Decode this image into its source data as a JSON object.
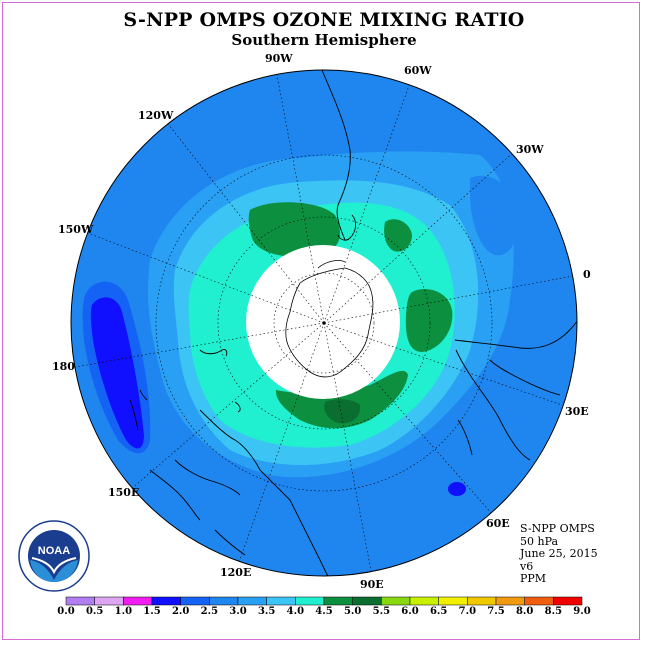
{
  "header": {
    "title": "S-NPP OMPS OZONE MIXING RATIO",
    "subtitle": "Southern Hemisphere"
  },
  "map": {
    "projection": "polar-stereographic-south",
    "longitude_labels": [
      "90W",
      "60W",
      "30W",
      "0",
      "30E",
      "60E",
      "90E",
      "120E",
      "150E",
      "180",
      "150W",
      "120W"
    ],
    "ocean_color": "#1f86f0",
    "mask_color": "#ffffff"
  },
  "info": {
    "instrument": "S-NPP OMPS",
    "level": "50 hPa",
    "date": "June 25, 2015",
    "version": "v6",
    "units": "PPM"
  },
  "colorbar": {
    "ticks": [
      "0.0",
      "0.5",
      "1.0",
      "1.5",
      "2.0",
      "2.5",
      "3.0",
      "3.5",
      "4.0",
      "4.5",
      "5.0",
      "5.5",
      "6.0",
      "6.5",
      "7.0",
      "7.5",
      "8.0",
      "8.5",
      "9.0"
    ],
    "colors": [
      "#b07ef0",
      "#dca6f0",
      "#f01cf0",
      "#1010ff",
      "#1463f5",
      "#1f86f0",
      "#2aa0f5",
      "#3cc4f5",
      "#20f0d0",
      "#0c9040",
      "#0a6e30",
      "#88d810",
      "#c8f000",
      "#f0f000",
      "#f0c800",
      "#f09a10",
      "#f05e10",
      "#f00000",
      "#7a5236"
    ]
  },
  "logo": {
    "text": "NOAA"
  }
}
